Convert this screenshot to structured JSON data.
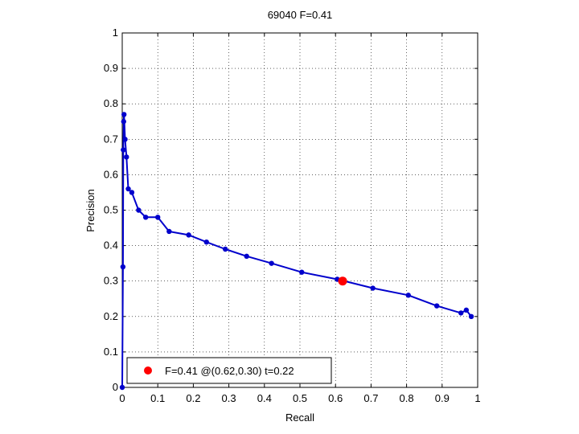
{
  "chart_data": {
    "type": "line",
    "title": "69040 F=0.41",
    "xlabel": "Recall",
    "ylabel": "Precision",
    "xlim": [
      0,
      1
    ],
    "ylim": [
      0,
      1
    ],
    "grid": true,
    "x_ticks": [
      "0",
      "0.1",
      "0.2",
      "0.3",
      "0.4",
      "0.5",
      "0.6",
      "0.7",
      "0.8",
      "0.9",
      "1"
    ],
    "y_ticks": [
      "0",
      "0.1",
      "0.2",
      "0.3",
      "0.4",
      "0.5",
      "0.6",
      "0.7",
      "0.8",
      "0.9",
      "1"
    ],
    "series": [
      {
        "color": "#0000cc",
        "points": [
          [
            0.0,
            0.0
          ],
          [
            0.002,
            0.34
          ],
          [
            0.003,
            0.67
          ],
          [
            0.004,
            0.75
          ],
          [
            0.005,
            0.77
          ],
          [
            0.008,
            0.7
          ],
          [
            0.012,
            0.65
          ],
          [
            0.017,
            0.56
          ],
          [
            0.027,
            0.55
          ],
          [
            0.046,
            0.5
          ],
          [
            0.066,
            0.48
          ],
          [
            0.1,
            0.48
          ],
          [
            0.132,
            0.44
          ],
          [
            0.187,
            0.43
          ],
          [
            0.237,
            0.41
          ],
          [
            0.29,
            0.39
          ],
          [
            0.35,
            0.37
          ],
          [
            0.42,
            0.35
          ],
          [
            0.505,
            0.325
          ],
          [
            0.605,
            0.305
          ],
          [
            0.705,
            0.28
          ],
          [
            0.805,
            0.26
          ],
          [
            0.885,
            0.23
          ],
          [
            0.953,
            0.21
          ],
          [
            0.968,
            0.218
          ],
          [
            0.982,
            0.2
          ]
        ]
      }
    ],
    "best_point": {
      "recall": 0.62,
      "precision": 0.3,
      "color": "#ff0000"
    },
    "legend": {
      "position": "bottom-left",
      "text": "F=0.41 @(0.62,0.30) t=0.22"
    }
  }
}
